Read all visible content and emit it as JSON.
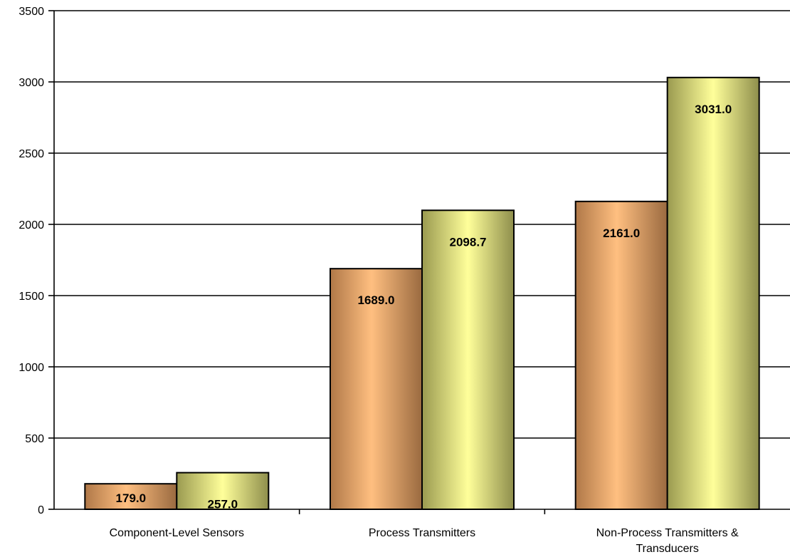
{
  "chart_data": {
    "type": "bar",
    "categories": [
      [
        "Component-Level Sensors"
      ],
      [
        "Process Transmitters"
      ],
      [
        "Non-Process Transmitters &",
        "Transducers"
      ]
    ],
    "series": [
      {
        "values": [
          179.0,
          1689.0,
          2161.0
        ],
        "labels": [
          "179.0",
          "1689.0",
          "2161.0"
        ],
        "color": "#f4a460"
      },
      {
        "values": [
          257.0,
          2098.7,
          3031.0
        ],
        "labels": [
          "257.0",
          "2098.7",
          "3031.0"
        ],
        "color": "#e8e080"
      }
    ],
    "ylim": [
      0,
      3500
    ],
    "yticks": [
      0,
      500,
      1000,
      1500,
      2000,
      2500,
      3000,
      3500
    ],
    "grid": true,
    "legend": "none"
  }
}
